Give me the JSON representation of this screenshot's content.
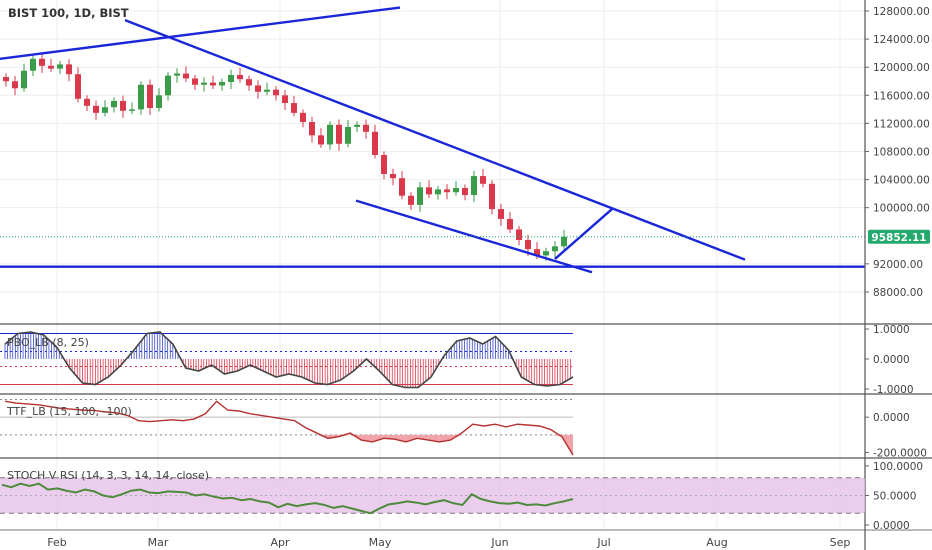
{
  "header": {
    "symbol_label": "BIST 100, 1D, BIST"
  },
  "colors": {
    "trendline": "#1a27d9",
    "candle_up": "#3a9b48",
    "candle_down": "#d9394b",
    "price_marker": "#22a96b",
    "indicator_line": "#444444",
    "pbo_fill": "#d9394b",
    "pbo_fill_up": "#3848c8",
    "ttf_line": "#b4312f",
    "ttf_fill": "#f0a3a8",
    "stoch_band": "#e4bde8",
    "stoch_line": "#4f8a3c",
    "grid": "#eeeeee"
  },
  "chart_data": [
    {
      "type": "candlestick",
      "name": "main-price",
      "title": "BIST 100, 1D, BIST",
      "y_ticks": [
        "128000.00",
        "124000.00",
        "120000.00",
        "116000.00",
        "112000.00",
        "108000.00",
        "104000.00",
        "100000.00",
        "92000.00",
        "88000.00"
      ],
      "x_ticks": [
        "Feb",
        "Mar",
        "Apr",
        "May",
        "Jun",
        "Jul",
        "Aug",
        "Sep"
      ],
      "ylim": [
        86000,
        129000
      ],
      "last_price_label": "95852.11",
      "last_price": 95852.11,
      "closes": [
        118000,
        117000,
        119500,
        121200,
        120200,
        119800,
        120400,
        119000,
        115500,
        114500,
        113500,
        114300,
        115200,
        113800,
        114000,
        117500,
        114200,
        116000,
        118800,
        119100,
        118400,
        117500,
        117800,
        117400,
        117900,
        118900,
        118300,
        117400,
        116500,
        116800,
        116000,
        114900,
        113500,
        112200,
        110300,
        109000,
        111800,
        109100,
        111500,
        111800,
        110800,
        107500,
        104800,
        104200,
        101700,
        100400,
        102900,
        101900,
        102600,
        102200,
        102800,
        101800,
        104500,
        103400,
        99800,
        98400,
        96900,
        95400,
        94100,
        93200,
        93800,
        94500,
        95852.11
      ],
      "horizontal_level": 91600,
      "trendlines": [
        {
          "name": "upper-channel",
          "from": {
            "x": 0,
            "y": 121200
          },
          "to": {
            "x": 400,
            "y": 128500
          }
        },
        {
          "name": "descending-upper",
          "from": {
            "x": 125,
            "y": 126700
          },
          "to": {
            "x": 745,
            "y": 92600
          }
        },
        {
          "name": "descending-lower",
          "from": {
            "x": 356,
            "y": 101000
          },
          "to": {
            "x": 592,
            "y": 90800
          }
        },
        {
          "name": "rebound-leg",
          "from": {
            "x": 555,
            "y": 92700
          },
          "to": {
            "x": 612,
            "y": 99800
          }
        }
      ]
    },
    {
      "type": "line",
      "name": "pbo-indicator",
      "title": "PBO_LB (8, 25)",
      "y_ticks": [
        "1.0000",
        "0.0000",
        "-1.0000"
      ],
      "ylim": [
        -1.1,
        1.1
      ],
      "levels": [
        0.85,
        0.25,
        -0.25,
        -0.85
      ],
      "values": [
        0.5,
        0.85,
        0.9,
        0.8,
        0.4,
        -0.3,
        -0.8,
        -0.85,
        -0.6,
        -0.2,
        0.3,
        0.85,
        0.9,
        0.5,
        -0.3,
        -0.4,
        -0.2,
        -0.5,
        -0.4,
        -0.2,
        -0.4,
        -0.6,
        -0.5,
        -0.6,
        -0.8,
        -0.85,
        -0.7,
        -0.4,
        0.0,
        -0.4,
        -0.85,
        -0.95,
        -0.95,
        -0.6,
        0.1,
        0.6,
        0.7,
        0.5,
        0.75,
        0.3,
        -0.6,
        -0.85,
        -0.9,
        -0.85,
        -0.6
      ]
    },
    {
      "type": "area",
      "name": "ttf-indicator",
      "title": "TTF_LB (15, 100, -100)",
      "y_ticks": [
        "0.0000",
        "-200.0000"
      ],
      "ylim": [
        -220,
        120
      ],
      "levels": [
        100,
        -100
      ],
      "values": [
        90,
        80,
        75,
        70,
        60,
        50,
        45,
        40,
        38,
        30,
        25,
        10,
        -20,
        -25,
        -20,
        -15,
        -20,
        -10,
        20,
        90,
        40,
        35,
        20,
        10,
        0,
        -10,
        -20,
        -60,
        -90,
        -120,
        -110,
        -90,
        -130,
        -140,
        -120,
        -125,
        -140,
        -120,
        -130,
        -140,
        -130,
        -90,
        -40,
        -50,
        -40,
        -55,
        -40,
        -45,
        -50,
        -70,
        -110,
        -215
      ]
    },
    {
      "type": "line",
      "name": "stoch-rsi-indicator",
      "title": "STOCH V RSI (14, 3, 3, 14, 14, close)",
      "y_ticks": [
        "100.0000",
        "50.0000",
        "0.0000"
      ],
      "ylim": [
        -5,
        110
      ],
      "levels": [
        80,
        20
      ],
      "values": [
        68,
        64,
        70,
        66,
        70,
        60,
        62,
        58,
        55,
        60,
        57,
        50,
        47,
        52,
        58,
        60,
        55,
        54,
        57,
        56,
        55,
        50,
        52,
        48,
        45,
        46,
        42,
        44,
        40,
        38,
        30,
        36,
        32,
        35,
        37,
        34,
        29,
        32,
        28,
        24,
        20,
        28,
        35,
        37,
        40,
        38,
        35,
        39,
        42,
        37,
        34,
        52,
        44,
        40,
        37,
        36,
        38,
        34,
        35,
        33,
        37,
        40,
        44
      ]
    }
  ]
}
